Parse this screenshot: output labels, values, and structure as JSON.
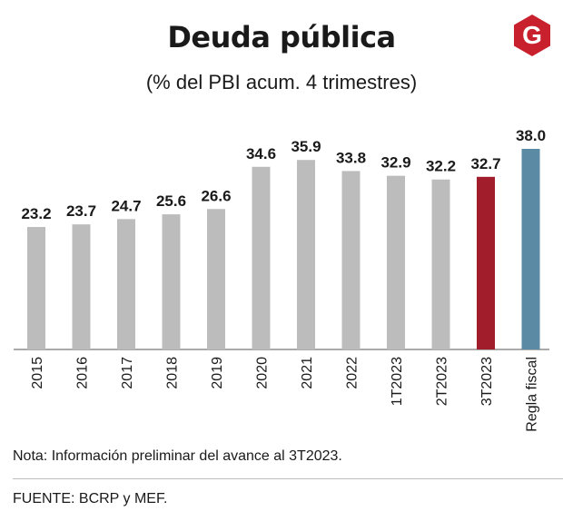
{
  "header": {
    "title": "Deuda pública",
    "subtitle": "(% del PBI acum. 4 trimestres)",
    "logo_letter": "G"
  },
  "chart_data": {
    "type": "bar",
    "title": "Deuda pública",
    "subtitle": "(% del PBI acum. 4 trimestres)",
    "categories": [
      "2015",
      "2016",
      "2017",
      "2018",
      "2019",
      "2020",
      "2021",
      "2022",
      "1T2023",
      "2T2023",
      "3T2023",
      "Regla fiscal"
    ],
    "values": [
      23.2,
      23.7,
      24.7,
      25.6,
      26.6,
      34.6,
      35.9,
      33.8,
      32.9,
      32.2,
      32.7,
      38.0
    ],
    "value_labels": [
      "23.2",
      "23.7",
      "24.7",
      "25.6",
      "26.6",
      "34.6",
      "35.9",
      "33.8",
      "32.9",
      "32.2",
      "32.7",
      "38.0"
    ],
    "bar_colors": [
      "#bcbcbc",
      "#bcbcbc",
      "#bcbcbc",
      "#bcbcbc",
      "#bcbcbc",
      "#bcbcbc",
      "#bcbcbc",
      "#bcbcbc",
      "#bcbcbc",
      "#bcbcbc",
      "#a11d2b",
      "#5a8aa4"
    ],
    "ylim": [
      0,
      38
    ],
    "grid": false,
    "xlabel": "",
    "ylabel": ""
  },
  "footer": {
    "note": "Nota: Información preliminar del avance al 3T2023.",
    "source": "FUENTE: BCRP y MEF."
  },
  "colors": {
    "logo_red": "#c8202c",
    "axis": "#555555",
    "text": "#1a1a1a"
  }
}
